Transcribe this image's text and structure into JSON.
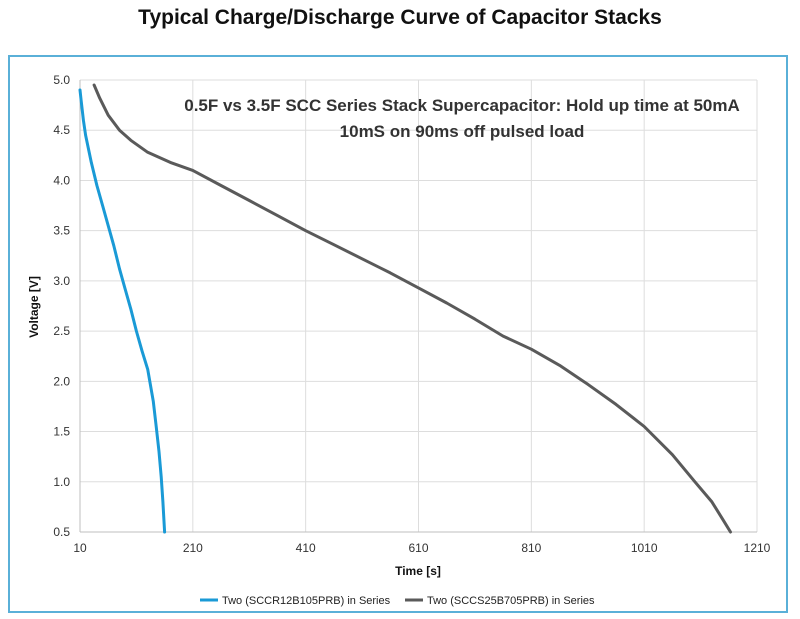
{
  "page": {
    "title": "Typical Charge/Discharge Curve of Capacitor Stacks"
  },
  "chart_data": {
    "type": "line",
    "annotation_lines": [
      "0.5F vs 3.5F SCC Series Stack Supercapacitor: Hold up time at 50mA",
      "10mS on 90ms off pulsed load"
    ],
    "xlabel": "Time [s]",
    "ylabel": "Voltage [V]",
    "xlim": [
      10,
      1210
    ],
    "ylim": [
      0.5,
      5.0
    ],
    "xticks": [
      10,
      210,
      410,
      610,
      810,
      1010,
      1210
    ],
    "yticks": [
      0.5,
      1.0,
      1.5,
      2.0,
      2.5,
      3.0,
      3.5,
      4.0,
      4.5,
      5.0
    ],
    "ytick_labels": [
      "0.5",
      "1.0",
      "1.5",
      "2.0",
      "2.5",
      "3.0",
      "3.5",
      "4.0",
      "4.5",
      "5.0"
    ],
    "grid": true,
    "legend_position": "bottom",
    "series": [
      {
        "name": "Two (SCCR12B105PRB) in Series",
        "color": "#1a9ad6",
        "x": [
          10,
          12,
          16,
          20,
          30,
          40,
          50,
          60,
          70,
          80,
          90,
          100,
          110,
          120,
          130,
          140,
          145,
          150,
          154,
          157,
          160
        ],
        "y": [
          4.9,
          4.8,
          4.6,
          4.45,
          4.18,
          3.95,
          3.75,
          3.55,
          3.35,
          3.12,
          2.92,
          2.72,
          2.5,
          2.3,
          2.12,
          1.8,
          1.55,
          1.3,
          1.05,
          0.8,
          0.5
        ]
      },
      {
        "name": "Two (SCCS25B705PRB) in Series",
        "color": "#5a5a5a",
        "x": [
          35,
          45,
          60,
          80,
          100,
          130,
          170,
          210,
          260,
          310,
          360,
          410,
          460,
          510,
          560,
          610,
          660,
          710,
          760,
          810,
          860,
          910,
          960,
          1010,
          1060,
          1100,
          1130,
          1150,
          1163
        ],
        "y": [
          4.95,
          4.82,
          4.65,
          4.5,
          4.4,
          4.28,
          4.18,
          4.1,
          3.95,
          3.8,
          3.65,
          3.5,
          3.36,
          3.22,
          3.08,
          2.93,
          2.78,
          2.62,
          2.45,
          2.32,
          2.16,
          1.97,
          1.77,
          1.55,
          1.27,
          1.0,
          0.8,
          0.62,
          0.5
        ]
      }
    ]
  }
}
